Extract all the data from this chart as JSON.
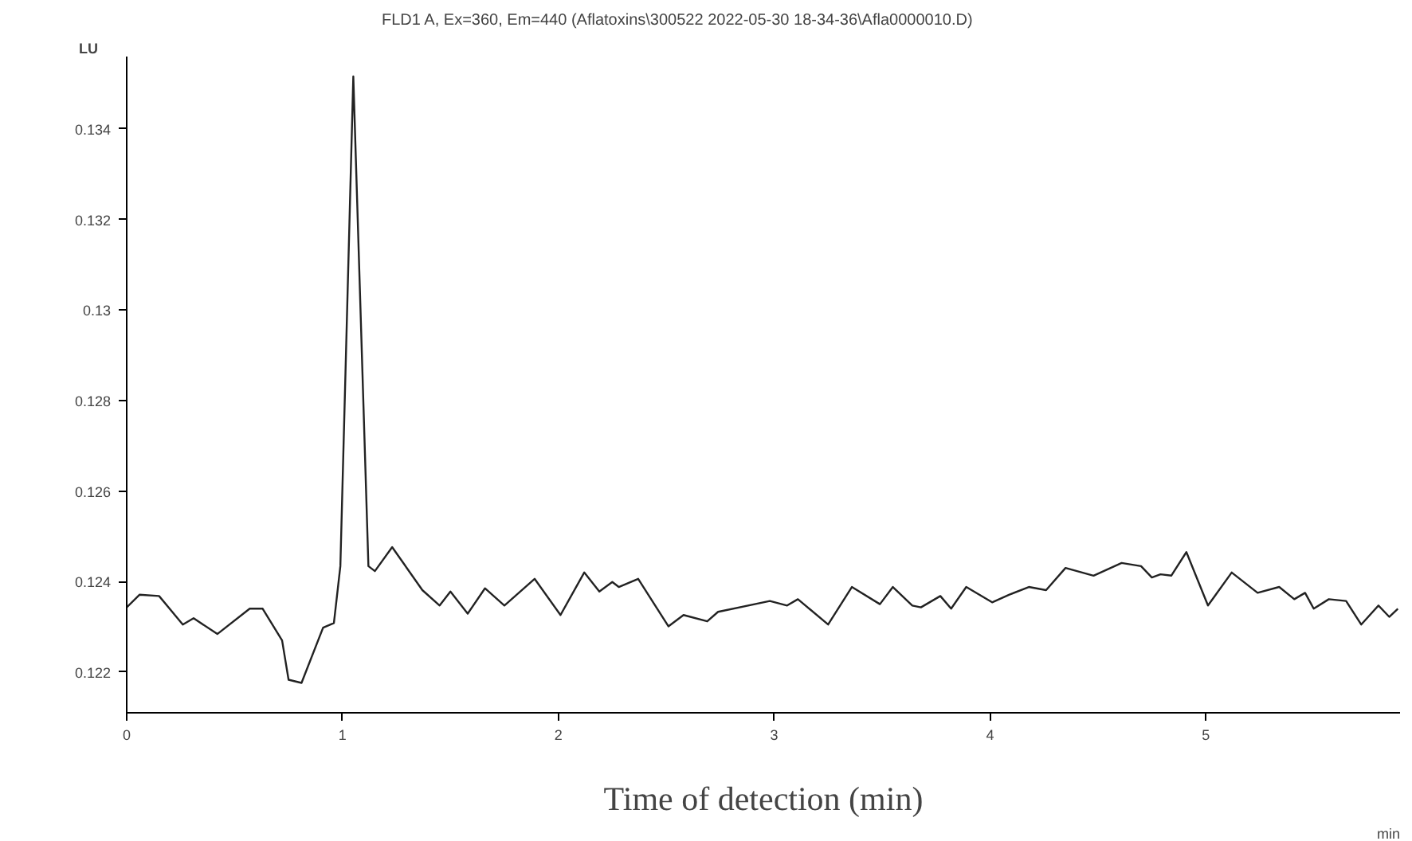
{
  "chart_data": {
    "type": "line",
    "title": "FLD1 A, Ex=360, Em=440 (Aflatoxins\\300522 2022-05-30 18-34-36\\Afla0000010.D)",
    "xlabel": "Time of detection (min)",
    "ylabel": "LU",
    "annotations": [
      "min"
    ],
    "x": [
      0,
      0.06,
      0.15,
      0.26,
      0.31,
      0.42,
      0.57,
      0.63,
      0.72,
      0.75,
      0.81,
      0.91,
      0.96,
      0.99,
      1.05,
      1.12,
      1.15,
      1.23,
      1.37,
      1.45,
      1.5,
      1.58,
      1.66,
      1.75,
      1.89,
      2.01,
      2.12,
      2.19,
      2.25,
      2.28,
      2.37,
      2.51,
      2.58,
      2.69,
      2.74,
      2.98,
      3.06,
      3.11,
      3.25,
      3.36,
      3.49,
      3.55,
      3.64,
      3.68,
      3.77,
      3.82,
      3.89,
      4.01,
      4.09,
      4.18,
      4.26,
      4.35,
      4.48,
      4.61,
      4.7,
      4.75,
      4.79,
      4.84,
      4.91,
      5.01,
      5.12,
      5.24,
      5.34,
      5.41,
      5.46,
      5.5,
      5.57,
      5.65,
      5.72,
      5.8,
      5.85,
      5.89
    ],
    "series": [
      {
        "color": "#222222",
        "values": [
          0.12343,
          0.12371,
          0.12368,
          0.12305,
          0.12319,
          0.12284,
          0.1234,
          0.1234,
          0.1227,
          0.12183,
          0.12176,
          0.12298,
          0.12308,
          0.12434,
          0.13516,
          0.12434,
          0.12423,
          0.12476,
          0.12381,
          0.12347,
          0.12378,
          0.12329,
          0.12385,
          0.12347,
          0.12406,
          0.12326,
          0.1242,
          0.12378,
          0.12399,
          0.12388,
          0.12406,
          0.12301,
          0.12326,
          0.12312,
          0.12333,
          0.12357,
          0.12347,
          0.12361,
          0.12305,
          0.12388,
          0.1235,
          0.12388,
          0.12347,
          0.12343,
          0.12368,
          0.1234,
          0.12388,
          0.12354,
          0.12371,
          0.12388,
          0.12381,
          0.1243,
          0.12413,
          0.12441,
          0.12434,
          0.12409,
          0.12416,
          0.12413,
          0.12465,
          0.12347,
          0.1242,
          0.12375,
          0.12388,
          0.12361,
          0.12375,
          0.1234,
          0.12361,
          0.12357,
          0.12305,
          0.12347,
          0.12322,
          0.1234
        ]
      }
    ],
    "xlim": [
      0,
      5.9
    ],
    "ylim": [
      0.1211,
      0.1356
    ],
    "xticks": [
      0,
      1,
      2,
      3,
      4,
      5
    ],
    "yticks": [
      0.122,
      0.124,
      0.126,
      0.128,
      0.13,
      0.132,
      0.134
    ],
    "grid": false,
    "marker": "none",
    "line_style": "solid"
  }
}
